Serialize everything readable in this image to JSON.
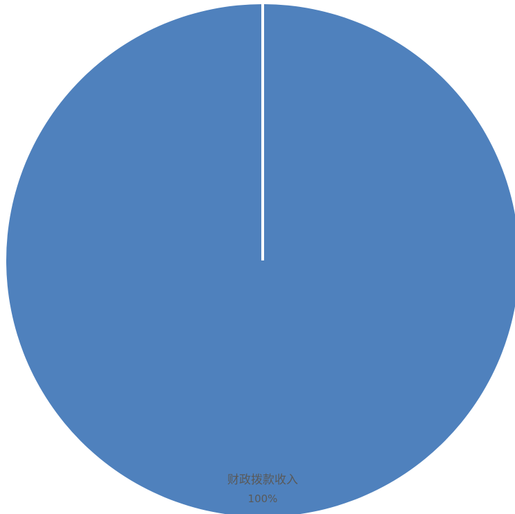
{
  "chart_data": {
    "type": "pie",
    "slices": [
      {
        "label": "财政拨款收入",
        "value": 100,
        "percent_label": "100%"
      }
    ],
    "colors": [
      "#4f81bd"
    ],
    "separator_color": "#ffffff",
    "legend": "none"
  }
}
